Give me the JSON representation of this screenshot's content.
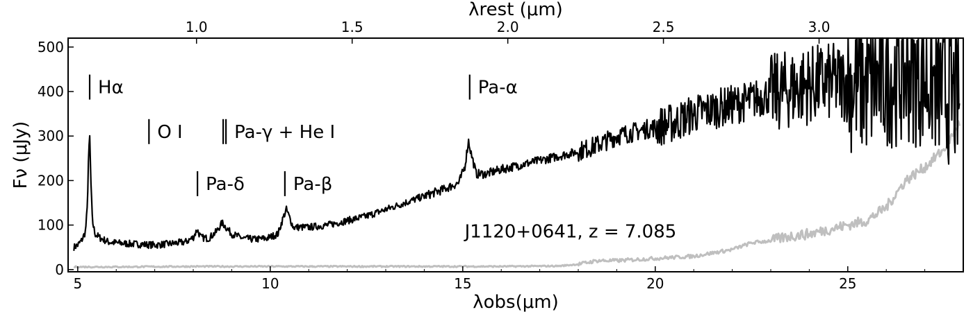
{
  "chart_data": {
    "type": "line",
    "object_label": "J1120+0641, z = 7.085",
    "redshift": 7.085,
    "xlim": [
      4.75,
      28.0
    ],
    "ylim": [
      -5,
      520
    ],
    "grid": false,
    "legend": "none",
    "x_axis_label": "λobs(μm)",
    "y_axis_label": "Fν (μJy)",
    "top_axis_label": "λrest (μm)",
    "x_ticks": [
      "5",
      "10",
      "15",
      "20",
      "25"
    ],
    "y_ticks": [
      "0",
      "100",
      "200",
      "300",
      "400",
      "500"
    ],
    "top_ticks": [
      "1.0",
      "1.5",
      "2.0",
      "2.5",
      "3.0"
    ],
    "colors": {
      "flux": "#000000",
      "error": "#bfbfbf"
    },
    "lines": [
      {
        "label": "Hα",
        "x": 5.31,
        "y_level": 410
      },
      {
        "label": "O I",
        "x": 6.85,
        "y_level": 310
      },
      {
        "label": "Pa-γ + He I",
        "x": 8.85,
        "y_level": 310
      },
      {
        "label": "Pa-δ",
        "x": 8.11,
        "y_level": 193
      },
      {
        "label": "Pa-β",
        "x": 10.38,
        "y_level": 193
      },
      {
        "label": "Pa-α",
        "x": 15.18,
        "y_level": 410
      }
    ],
    "series": [
      {
        "name": "flux",
        "x": [
          4.9,
          5.0,
          5.1,
          5.2,
          5.25,
          5.28,
          5.31,
          5.34,
          5.38,
          5.45,
          5.6,
          5.8,
          6.0,
          6.3,
          6.6,
          7.0,
          7.4,
          7.8,
          8.0,
          8.1,
          8.2,
          8.4,
          8.6,
          8.75,
          8.85,
          9.0,
          9.3,
          9.6,
          9.9,
          10.2,
          10.35,
          10.42,
          10.6,
          11.0,
          11.5,
          12.0,
          12.5,
          13.0,
          13.5,
          14.0,
          14.5,
          14.9,
          15.05,
          15.15,
          15.22,
          15.35,
          15.6,
          16.0,
          16.5,
          17.0,
          17.5,
          18.0,
          18.5,
          19.0,
          19.5,
          20.0,
          20.5,
          21.0,
          21.5,
          22.0,
          22.5,
          23.0,
          23.5,
          24.0,
          24.5,
          25.0,
          25.5,
          26.0,
          26.5,
          27.0,
          27.5,
          27.9
        ],
        "y": [
          50,
          55,
          65,
          85,
          140,
          250,
          300,
          200,
          110,
          80,
          70,
          62,
          60,
          58,
          57,
          55,
          58,
          62,
          72,
          90,
          72,
          70,
          85,
          105,
          95,
          80,
          70,
          68,
          70,
          80,
          120,
          135,
          95,
          95,
          100,
          110,
          120,
          135,
          150,
          165,
          180,
          195,
          230,
          290,
          260,
          215,
          215,
          225,
          235,
          245,
          255,
          265,
          280,
          300,
          310,
          320,
          330,
          350,
          360,
          370,
          380,
          395,
          405,
          415,
          420,
          420,
          410,
          430,
          440,
          430,
          400,
          380
        ]
      },
      {
        "name": "error",
        "x": [
          4.9,
          6.0,
          8.0,
          10.0,
          12.0,
          14.0,
          16.0,
          17.5,
          18.0,
          18.5,
          19.0,
          20.0,
          21.0,
          22.0,
          22.5,
          23.0,
          23.5,
          24.0,
          24.5,
          25.0,
          25.5,
          26.0,
          26.5,
          27.0,
          27.5,
          27.9
        ],
        "y": [
          6,
          6,
          7,
          7,
          7,
          7,
          7,
          8,
          12,
          20,
          20,
          25,
          30,
          45,
          60,
          65,
          75,
          80,
          90,
          100,
          110,
          140,
          200,
          230,
          270,
          330
        ]
      }
    ]
  }
}
